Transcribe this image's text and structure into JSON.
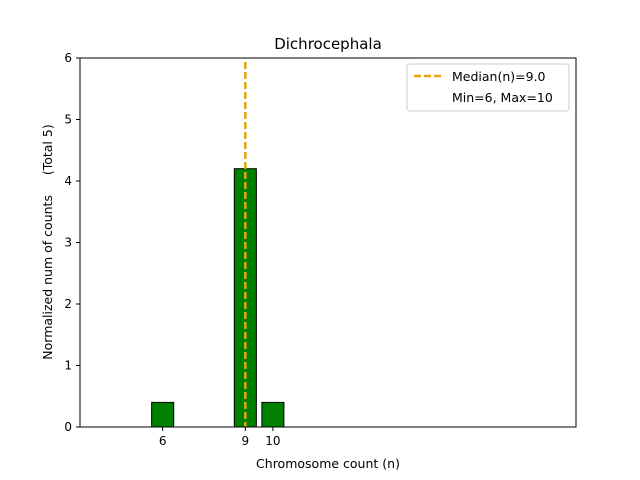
{
  "chart_data": {
    "type": "bar",
    "title": "Dichrocephala",
    "xlabel": "Chromosome count (n)",
    "ylabel": "Normalized num of counts     (Total 5)",
    "x": [
      6,
      9,
      10
    ],
    "values": [
      0.4,
      4.2,
      0.4
    ],
    "xticks": [
      "6",
      "9",
      "10"
    ],
    "yticks": [
      "0",
      "1",
      "2",
      "3",
      "4",
      "5",
      "6"
    ],
    "xlim": [
      3,
      21
    ],
    "ylim": [
      0,
      6
    ],
    "bar_color": "#008000",
    "median": 9.0,
    "median_color": "#e6a50a",
    "legend": {
      "position": "top-right",
      "entries": [
        "Median(n)=9.0",
        "Min=6, Max=10"
      ]
    },
    "grid": false
  }
}
